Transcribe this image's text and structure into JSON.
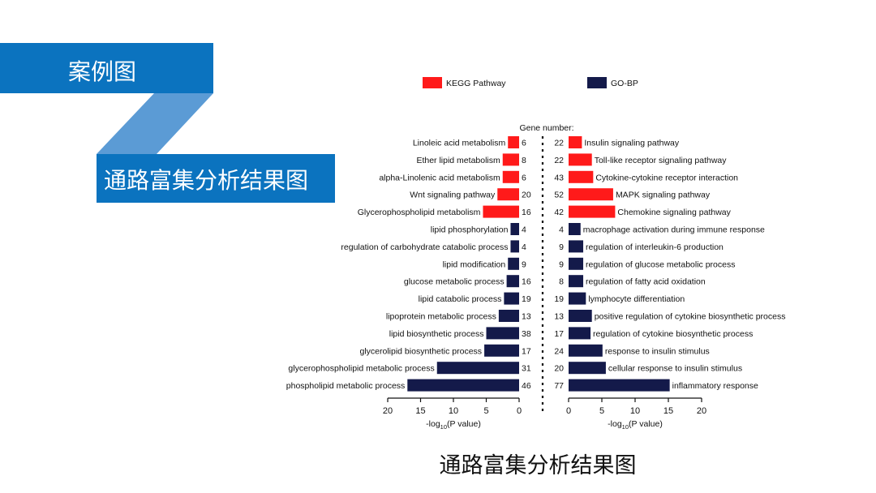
{
  "slide": {
    "title": "案例图",
    "subtitle": "通路富集分析结果图",
    "caption": "通路富集分析结果图"
  },
  "colors": {
    "banner": "#0b73bf",
    "banner_light": "#5b9bd5",
    "kegg": "#ff1a1a",
    "gobp": "#141a4a"
  },
  "chart_data": {
    "type": "bar",
    "orientation": "horizontal",
    "legend": [
      {
        "name": "KEGG Pathway",
        "color": "#ff1a1a"
      },
      {
        "name": "GO-BP",
        "color": "#141a4a"
      }
    ],
    "center_label": "Gene number:",
    "xlabel_left_prefix": "-log",
    "xlabel_left_sub": "10",
    "xlabel_left_suffix": "(P value)",
    "xlabel_right_prefix": "-log",
    "xlabel_right_sub": "10",
    "xlabel_right_suffix": "(P value)",
    "xlim": [
      0,
      20
    ],
    "xticks": [
      0,
      5,
      10,
      15,
      20
    ],
    "left": [
      {
        "label": "Linoleic acid metabolism",
        "value": 1.7,
        "count": "6",
        "series": "KEGG Pathway"
      },
      {
        "label": "Ether lipid metabolism",
        "value": 2.5,
        "count": "8",
        "series": "KEGG Pathway"
      },
      {
        "label": "alpha-Linolenic acid metabolism",
        "value": 2.5,
        "count": "6",
        "series": "KEGG Pathway"
      },
      {
        "label": "Wnt signaling pathway",
        "value": 3.3,
        "count": "20",
        "series": "KEGG Pathway"
      },
      {
        "label": "Glycerophospholipid metabolism",
        "value": 5.5,
        "count": "16",
        "series": "KEGG Pathway"
      },
      {
        "label": "lipid phosphorylation",
        "value": 1.3,
        "count": "4",
        "series": "GO-BP"
      },
      {
        "label": "regulation of carbohydrate catabolic process",
        "value": 1.3,
        "count": "4",
        "series": "GO-BP"
      },
      {
        "label": "lipid modification",
        "value": 1.7,
        "count": "9",
        "series": "GO-BP"
      },
      {
        "label": "glucose metabolic process",
        "value": 1.9,
        "count": "16",
        "series": "GO-BP"
      },
      {
        "label": "lipid catabolic process",
        "value": 2.3,
        "count": "19",
        "series": "GO-BP"
      },
      {
        "label": "lipoprotein metabolic process",
        "value": 3.1,
        "count": "13",
        "series": "GO-BP"
      },
      {
        "label": "lipid biosynthetic process",
        "value": 5.0,
        "count": "38",
        "series": "GO-BP"
      },
      {
        "label": "glycerolipid biosynthetic process",
        "value": 5.3,
        "count": "17",
        "series": "GO-BP"
      },
      {
        "label": "glycerophospholipid metabolic process",
        "value": 12.5,
        "count": "31",
        "series": "GO-BP"
      },
      {
        "label": "phospholipid metabolic process",
        "value": 17.0,
        "count": "46",
        "series": "GO-BP"
      }
    ],
    "right": [
      {
        "label": "Insulin signaling pathway",
        "value": 2.0,
        "count": "22",
        "series": "KEGG Pathway"
      },
      {
        "label": "Toll-like receptor signaling pathway",
        "value": 3.5,
        "count": "22",
        "series": "KEGG Pathway"
      },
      {
        "label": "Cytokine-cytokine receptor interaction",
        "value": 3.7,
        "count": "43",
        "series": "KEGG Pathway"
      },
      {
        "label": "MAPK signaling pathway",
        "value": 6.7,
        "count": "52",
        "series": "KEGG Pathway"
      },
      {
        "label": "Chemokine signaling pathway",
        "value": 7.0,
        "count": "42",
        "series": "KEGG Pathway"
      },
      {
        "label": "macrophage activation during immune response",
        "value": 1.8,
        "count": "4",
        "series": "GO-BP"
      },
      {
        "label": "regulation of interleukin-6 production",
        "value": 2.2,
        "count": "9",
        "series": "GO-BP"
      },
      {
        "label": "regulation of glucose metabolic process",
        "value": 2.2,
        "count": "9",
        "series": "GO-BP"
      },
      {
        "label": "regulation of fatty acid oxidation",
        "value": 2.2,
        "count": "8",
        "series": "GO-BP"
      },
      {
        "label": "lymphocyte differentiation",
        "value": 2.6,
        "count": "19",
        "series": "GO-BP"
      },
      {
        "label": "positive regulation of cytokine biosynthetic process",
        "value": 3.5,
        "count": "13",
        "series": "GO-BP"
      },
      {
        "label": "regulation of cytokine biosynthetic process",
        "value": 3.3,
        "count": "17",
        "series": "GO-BP"
      },
      {
        "label": "response to insulin stimulus",
        "value": 5.1,
        "count": "24",
        "series": "GO-BP"
      },
      {
        "label": "cellular response to insulin stimulus",
        "value": 5.6,
        "count": "20",
        "series": "GO-BP"
      },
      {
        "label": "inflammatory response",
        "value": 15.2,
        "count": "77",
        "series": "GO-BP"
      }
    ]
  }
}
